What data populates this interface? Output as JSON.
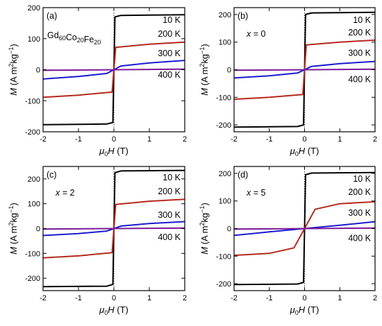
{
  "chart_data": [
    {
      "type": "line",
      "panel_label": "(a)",
      "composition_label": {
        "base": "Gd",
        "parts": [
          {
            "el": "Gd",
            "sub": "60"
          },
          {
            "el": "Co",
            "sub": "20"
          },
          {
            "el": "Fe",
            "sub": "20"
          }
        ]
      },
      "xlabel": "μ0H (T)",
      "ylabel": "M (A m2kg−1)",
      "xlim": [
        -2,
        2
      ],
      "ylim": [
        -200,
        200
      ],
      "xticks": [
        -2,
        -1,
        0,
        1,
        2
      ],
      "yticks": [
        -200,
        -100,
        0,
        100,
        200
      ],
      "series": [
        {
          "name": "10 K",
          "color": "#000000",
          "x": [
            -2,
            -1,
            -0.2,
            -0.03,
            0.03,
            0.2,
            1,
            2
          ],
          "y": [
            -177,
            -176,
            -175,
            -170,
            170,
            175,
            176,
            177
          ]
        },
        {
          "name": "200 K",
          "color": "#b5281c",
          "x": [
            -2,
            -1,
            -0.05,
            0.05,
            1,
            2
          ],
          "y": [
            -89,
            -82,
            -72,
            72,
            82,
            89
          ]
        },
        {
          "name": "300 K",
          "color": "#1a1ad0",
          "x": [
            -2,
            -1,
            -0.2,
            0,
            0.2,
            1,
            2
          ],
          "y": [
            -30,
            -22,
            -12,
            0,
            12,
            22,
            30
          ]
        },
        {
          "name": "400 K",
          "color": "#7a1a9a",
          "x": [
            -2,
            2
          ],
          "y": [
            -2,
            2
          ]
        }
      ]
    },
    {
      "type": "line",
      "panel_label": "(b)",
      "composition_label": {
        "text": "x = 0"
      },
      "xlabel": "μ0H (T)",
      "ylabel": "M (A m2kg−1)",
      "xlim": [
        -2,
        2
      ],
      "ylim": [
        -225,
        225
      ],
      "xticks": [
        -2,
        -1,
        0,
        1,
        2
      ],
      "yticks": [
        -200,
        -100,
        0,
        100,
        200
      ],
      "series": [
        {
          "name": "10 K",
          "color": "#000000",
          "x": [
            -2,
            -1,
            -0.2,
            -0.03,
            0.03,
            0.2,
            1,
            2
          ],
          "y": [
            -208,
            -207,
            -206,
            -200,
            200,
            206,
            207,
            208
          ]
        },
        {
          "name": "200 K",
          "color": "#b5281c",
          "x": [
            -2,
            -1,
            -0.05,
            0.05,
            1,
            2
          ],
          "y": [
            -107,
            -100,
            -90,
            90,
            100,
            107
          ]
        },
        {
          "name": "300 K",
          "color": "#1a1ad0",
          "x": [
            -2,
            -1,
            -0.2,
            0,
            0.2,
            1,
            2
          ],
          "y": [
            -30,
            -22,
            -12,
            0,
            12,
            22,
            30
          ]
        },
        {
          "name": "400 K",
          "color": "#7a1a9a",
          "x": [
            -2,
            2
          ],
          "y": [
            -2,
            2
          ]
        }
      ]
    },
    {
      "type": "line",
      "panel_label": "(c)",
      "composition_label": {
        "text": "x = 2"
      },
      "xlabel": "μ0H (T)",
      "ylabel": "M (A m2kg−1)",
      "xlim": [
        -2,
        2
      ],
      "ylim": [
        -250,
        250
      ],
      "xticks": [
        -2,
        -1,
        0,
        1,
        2
      ],
      "yticks": [
        -200,
        -100,
        0,
        100,
        200
      ],
      "series": [
        {
          "name": "10 K",
          "color": "#000000",
          "x": [
            -2,
            -1,
            -0.2,
            -0.03,
            0.03,
            0.2,
            1,
            2
          ],
          "y": [
            -234,
            -233,
            -232,
            -225,
            225,
            232,
            233,
            234
          ]
        },
        {
          "name": "200 K",
          "color": "#b5281c",
          "x": [
            -2,
            -1,
            -0.05,
            0.05,
            1,
            2
          ],
          "y": [
            -118,
            -110,
            -97,
            97,
            110,
            118
          ]
        },
        {
          "name": "300 K",
          "color": "#1a1ad0",
          "x": [
            -2,
            -1,
            -0.2,
            0,
            0.2,
            1,
            2
          ],
          "y": [
            -28,
            -20,
            -10,
            0,
            10,
            20,
            28
          ]
        },
        {
          "name": "400 K",
          "color": "#7a1a9a",
          "x": [
            -2,
            2
          ],
          "y": [
            -2,
            2
          ]
        }
      ]
    },
    {
      "type": "line",
      "panel_label": "(d)",
      "composition_label": {
        "text": "x = 5"
      },
      "xlabel": "μ0H (T)",
      "ylabel": "M (A m2kg−1)",
      "xlim": [
        -2,
        2
      ],
      "ylim": [
        -225,
        225
      ],
      "xticks": [
        -2,
        -1,
        0,
        1,
        2
      ],
      "yticks": [
        -200,
        -100,
        0,
        100,
        200
      ],
      "series": [
        {
          "name": "10 K",
          "color": "#000000",
          "x": [
            -2,
            -1,
            -0.2,
            -0.03,
            0.03,
            0.2,
            1,
            2
          ],
          "y": [
            -203,
            -202,
            -201,
            -195,
            195,
            201,
            202,
            203
          ]
        },
        {
          "name": "200 K",
          "color": "#b5281c",
          "x": [
            -2,
            -1,
            -0.3,
            0,
            0.3,
            1,
            2
          ],
          "y": [
            -97,
            -90,
            -70,
            0,
            70,
            90,
            97
          ]
        },
        {
          "name": "300 K",
          "color": "#1a1ad0",
          "x": [
            -2,
            -1,
            0,
            1,
            2
          ],
          "y": [
            -25,
            -12,
            0,
            12,
            25
          ]
        },
        {
          "name": "400 K",
          "color": "#7a1a9a",
          "x": [
            -2,
            2
          ],
          "y": [
            -2,
            2
          ]
        }
      ]
    }
  ]
}
